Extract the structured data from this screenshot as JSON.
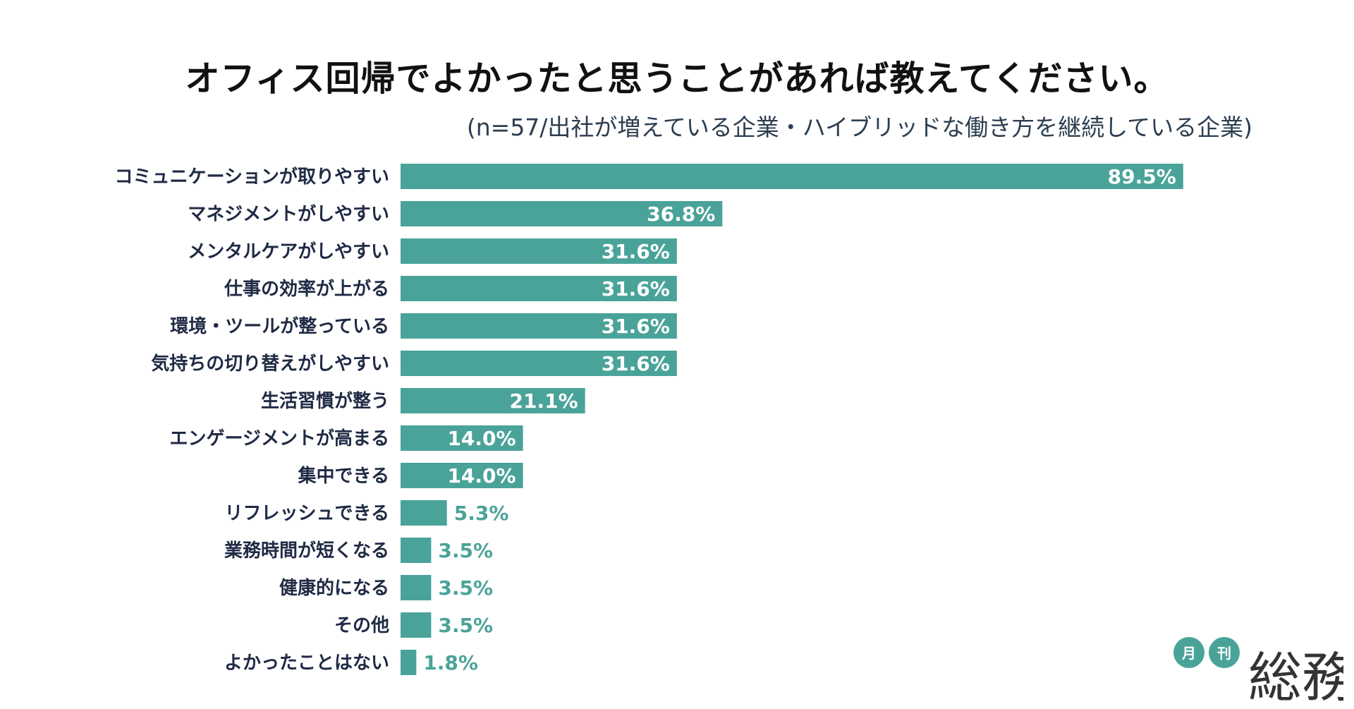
{
  "chart_data": {
    "type": "bar",
    "orientation": "horizontal",
    "title": "オフィス回帰でよかったと思うことがあれば教えてください。",
    "subtitle": "(n=57/出社が増えている企業・ハイブリッドな働き方を継続している企業)",
    "categories": [
      "コミュニケーションが取りやすい",
      "マネジメントがしやすい",
      "メンタルケアがしやすい",
      "仕事の効率が上がる",
      "環境・ツールが整っている",
      "気持ちの切り替えがしやすい",
      "生活習慣が整う",
      "エンゲージメントが高まる",
      "集中できる",
      "リフレッシュできる",
      "業務時間が短くなる",
      "健康的になる",
      "その他",
      "よかったことはない"
    ],
    "values": [
      89.5,
      36.8,
      31.6,
      31.6,
      31.6,
      31.6,
      21.1,
      14.0,
      14.0,
      5.3,
      3.5,
      3.5,
      3.5,
      1.8
    ],
    "value_labels": [
      "89.5%",
      "36.8%",
      "31.6%",
      "31.6%",
      "31.6%",
      "31.6%",
      "21.1%",
      "14.0%",
      "14.0%",
      "5.3%",
      "3.5%",
      "3.5%",
      "3.5%",
      "1.8%"
    ],
    "unit": "%",
    "xlim": [
      0,
      100
    ],
    "grid": false,
    "colors": {
      "bar": "#4aa399",
      "label_inside": "#ffffff",
      "label_outside": "#4aa399",
      "category_text": "#1f2a44"
    }
  },
  "logo": {
    "small_1": "月",
    "small_2": "刊",
    "main": "総務",
    "colors": {
      "circle": "#4aa399",
      "text": "#333333"
    }
  }
}
